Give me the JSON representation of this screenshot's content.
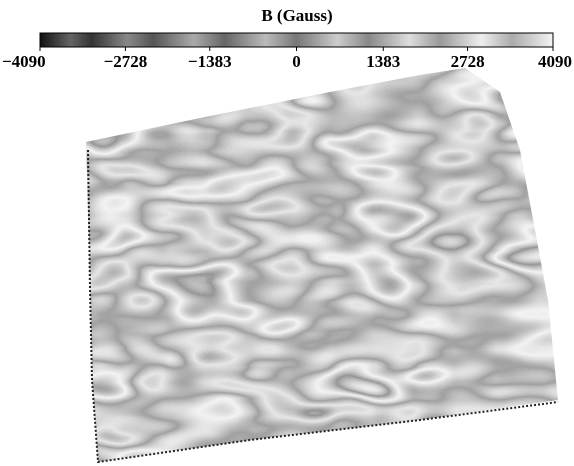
{
  "chart_data": {
    "type": "surface",
    "colorbar": {
      "label": "B (Gauss)",
      "lim": [
        -4090,
        4090
      ],
      "ticks": [
        {
          "value": -4090,
          "label": "−4090"
        },
        {
          "value": -2728,
          "label": "−2728"
        },
        {
          "value": -1383,
          "label": "−1383"
        },
        0,
        1383,
        2728,
        4090
      ]
    }
  }
}
